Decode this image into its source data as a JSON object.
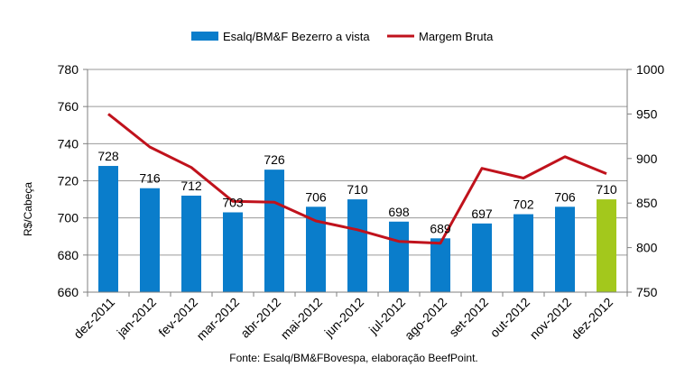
{
  "chart_data": {
    "type": "bar",
    "categories": [
      "dez-2011",
      "jan-2012",
      "fev-2012",
      "mar-2012",
      "abr-2012",
      "mai-2012",
      "jun-2012",
      "jul-2012",
      "ago-2012",
      "set-2012",
      "out-2012",
      "nov-2012",
      "dez-2012"
    ],
    "series": [
      {
        "name": "Esalq/BM&F Bezerro a vista",
        "type": "bar",
        "axis": "left",
        "values": [
          728,
          716,
          712,
          703,
          726,
          706,
          710,
          698,
          689,
          697,
          702,
          706,
          710
        ],
        "color": "#0a7dcb",
        "highlight_color": "#a3c81c"
      },
      {
        "name": "Margem Bruta",
        "type": "line",
        "axis": "right",
        "values": [
          950,
          913,
          890,
          852,
          851,
          830,
          820,
          807,
          805,
          889,
          878,
          902,
          883
        ],
        "color": "#c0121c"
      }
    ],
    "ylabel": "R$/Cabeça",
    "ylim": [
      660,
      780
    ],
    "y_ticks": [
      660,
      680,
      700,
      720,
      740,
      760,
      780
    ],
    "y2lim": [
      750,
      1000
    ],
    "y2_ticks": [
      750,
      800,
      850,
      900,
      950,
      1000
    ],
    "grid": true,
    "legend_position": "top",
    "source_note": "Fonte: Esalq/BM&FBovespa, elaboração BeefPoint."
  }
}
